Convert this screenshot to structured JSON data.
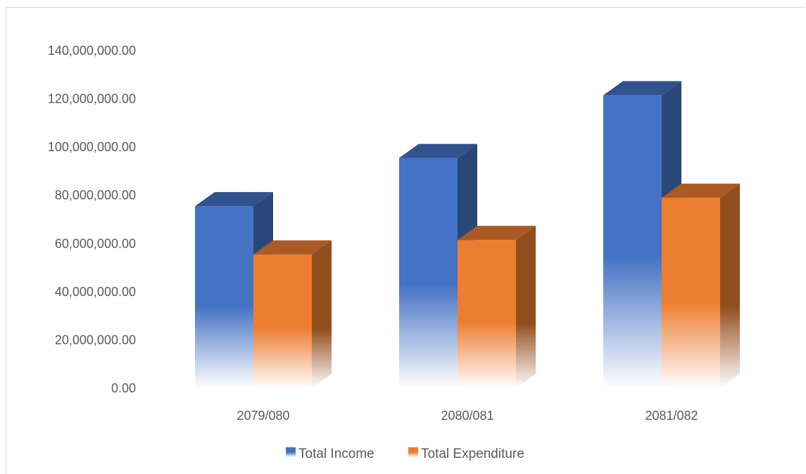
{
  "chart_data": {
    "type": "bar",
    "title": "",
    "xlabel": "",
    "ylabel": "",
    "categories": [
      "2079/080",
      "2080/081",
      "2081/082"
    ],
    "series": [
      {
        "name": "Total Income",
        "values": [
          75500000,
          95500000,
          121500000
        ],
        "color": "#4472c4"
      },
      {
        "name": "Total Expenditure",
        "values": [
          55500000,
          61500000,
          79000000
        ],
        "color": "#ed7d31"
      }
    ],
    "ylim": [
      0,
      140000000
    ],
    "yticks": [
      "0.00",
      "20,000,000.00",
      "40,000,000.00",
      "60,000,000.00",
      "80,000,000.00",
      "100,000,000.00",
      "120,000,000.00",
      "140,000,000.00"
    ],
    "style": "3d-column",
    "grid": false,
    "legend_position": "bottom"
  }
}
